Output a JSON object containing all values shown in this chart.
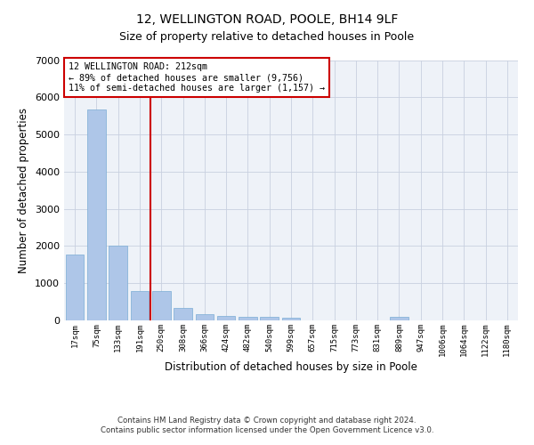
{
  "title": "12, WELLINGTON ROAD, POOLE, BH14 9LF",
  "subtitle": "Size of property relative to detached houses in Poole",
  "xlabel": "Distribution of detached houses by size in Poole",
  "ylabel": "Number of detached properties",
  "bar_color": "#aec6e8",
  "bar_edge_color": "#7aadd4",
  "grid_color": "#c8d0e0",
  "background_color": "#eef2f8",
  "annotation_line_color": "#cc0000",
  "annotation_box_color": "#cc0000",
  "categories": [
    "17sqm",
    "75sqm",
    "133sqm",
    "191sqm",
    "250sqm",
    "308sqm",
    "366sqm",
    "424sqm",
    "482sqm",
    "540sqm",
    "599sqm",
    "657sqm",
    "715sqm",
    "773sqm",
    "831sqm",
    "889sqm",
    "947sqm",
    "1006sqm",
    "1064sqm",
    "1122sqm",
    "1180sqm"
  ],
  "values": [
    1780,
    5680,
    2020,
    800,
    800,
    340,
    175,
    110,
    100,
    100,
    80,
    0,
    0,
    0,
    0,
    100,
    0,
    0,
    0,
    0,
    0
  ],
  "ylim": [
    0,
    7000
  ],
  "yticks": [
    0,
    1000,
    2000,
    3000,
    4000,
    5000,
    6000,
    7000
  ],
  "annotation_text_line1": "12 WELLINGTON ROAD: 212sqm",
  "annotation_text_line2": "← 89% of detached houses are smaller (9,756)",
  "annotation_text_line3": "11% of semi-detached houses are larger (1,157) →",
  "vertical_line_x": 3.5,
  "footnote1": "Contains HM Land Registry data © Crown copyright and database right 2024.",
  "footnote2": "Contains public sector information licensed under the Open Government Licence v3.0."
}
